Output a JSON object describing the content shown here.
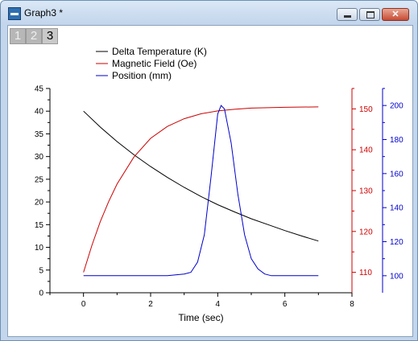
{
  "window": {
    "title": "Graph3 *",
    "controls": {
      "minimize": "minimize",
      "maximize": "maximize",
      "close": "✕"
    }
  },
  "layer_tabs": [
    {
      "label": "1",
      "active": false
    },
    {
      "label": "2",
      "active": false
    },
    {
      "label": "3",
      "active": true
    }
  ],
  "colors": {
    "temperature": "#000000",
    "magnetic": "#cc0000",
    "position": "#0000cc"
  },
  "chart_data": {
    "type": "line",
    "xlabel": "Time (sec)",
    "xlim": [
      -1,
      8
    ],
    "xticks": [
      0,
      2,
      4,
      6,
      8
    ],
    "legend": [
      {
        "label": "Delta Temperature (K)",
        "color": "#000000"
      },
      {
        "label": "Magnetic Field (Oe)",
        "color": "#cc0000"
      },
      {
        "label": "Position (mm)",
        "color": "#0000cc"
      }
    ],
    "axes": {
      "left": {
        "min": 0,
        "max": 45,
        "ticks": [
          0,
          5,
          10,
          15,
          20,
          25,
          30,
          35,
          40,
          45
        ],
        "color": "#000000"
      },
      "red": {
        "min": 105,
        "max": 155,
        "ticks": [
          110,
          120,
          130,
          140,
          150
        ],
        "color": "#cc0000"
      },
      "blue": {
        "min": 90,
        "max": 210,
        "ticks": [
          100,
          120,
          140,
          160,
          180,
          200
        ],
        "color": "#0000cc"
      }
    },
    "series": [
      {
        "name": "Delta Temperature (K)",
        "axis": "left",
        "color": "#000000",
        "x": [
          0,
          0.5,
          1,
          1.5,
          2,
          2.5,
          3,
          3.5,
          4,
          4.5,
          5,
          5.5,
          6,
          6.5,
          7
        ],
        "y": [
          40,
          36.5,
          33.3,
          30.4,
          27.8,
          25.4,
          23.2,
          21.2,
          19.4,
          17.8,
          16.3,
          15.0,
          13.7,
          12.5,
          11.4
        ]
      },
      {
        "name": "Magnetic Field (Oe)",
        "axis": "red",
        "color": "#cc0000",
        "x": [
          0,
          0.25,
          0.5,
          0.75,
          1,
          1.5,
          2,
          2.5,
          3,
          3.5,
          4,
          4.5,
          5,
          6,
          7
        ],
        "y": [
          110,
          116.6,
          122.4,
          127.3,
          131.6,
          138.2,
          142.8,
          145.7,
          147.6,
          148.8,
          149.5,
          149.9,
          150.2,
          150.4,
          150.5
        ]
      },
      {
        "name": "Position (mm)",
        "axis": "blue",
        "color": "#0000cc",
        "x": [
          0,
          1,
          2,
          2.5,
          3,
          3.2,
          3.4,
          3.6,
          3.8,
          4.0,
          4.1,
          4.2,
          4.4,
          4.6,
          4.8,
          5.0,
          5.2,
          5.4,
          5.6,
          6,
          7
        ],
        "y": [
          100,
          100,
          100,
          100,
          101,
          102,
          108,
          124,
          158,
          195,
          200,
          198,
          178,
          148,
          124,
          110,
          104,
          101,
          100,
          100,
          100
        ]
      }
    ]
  }
}
